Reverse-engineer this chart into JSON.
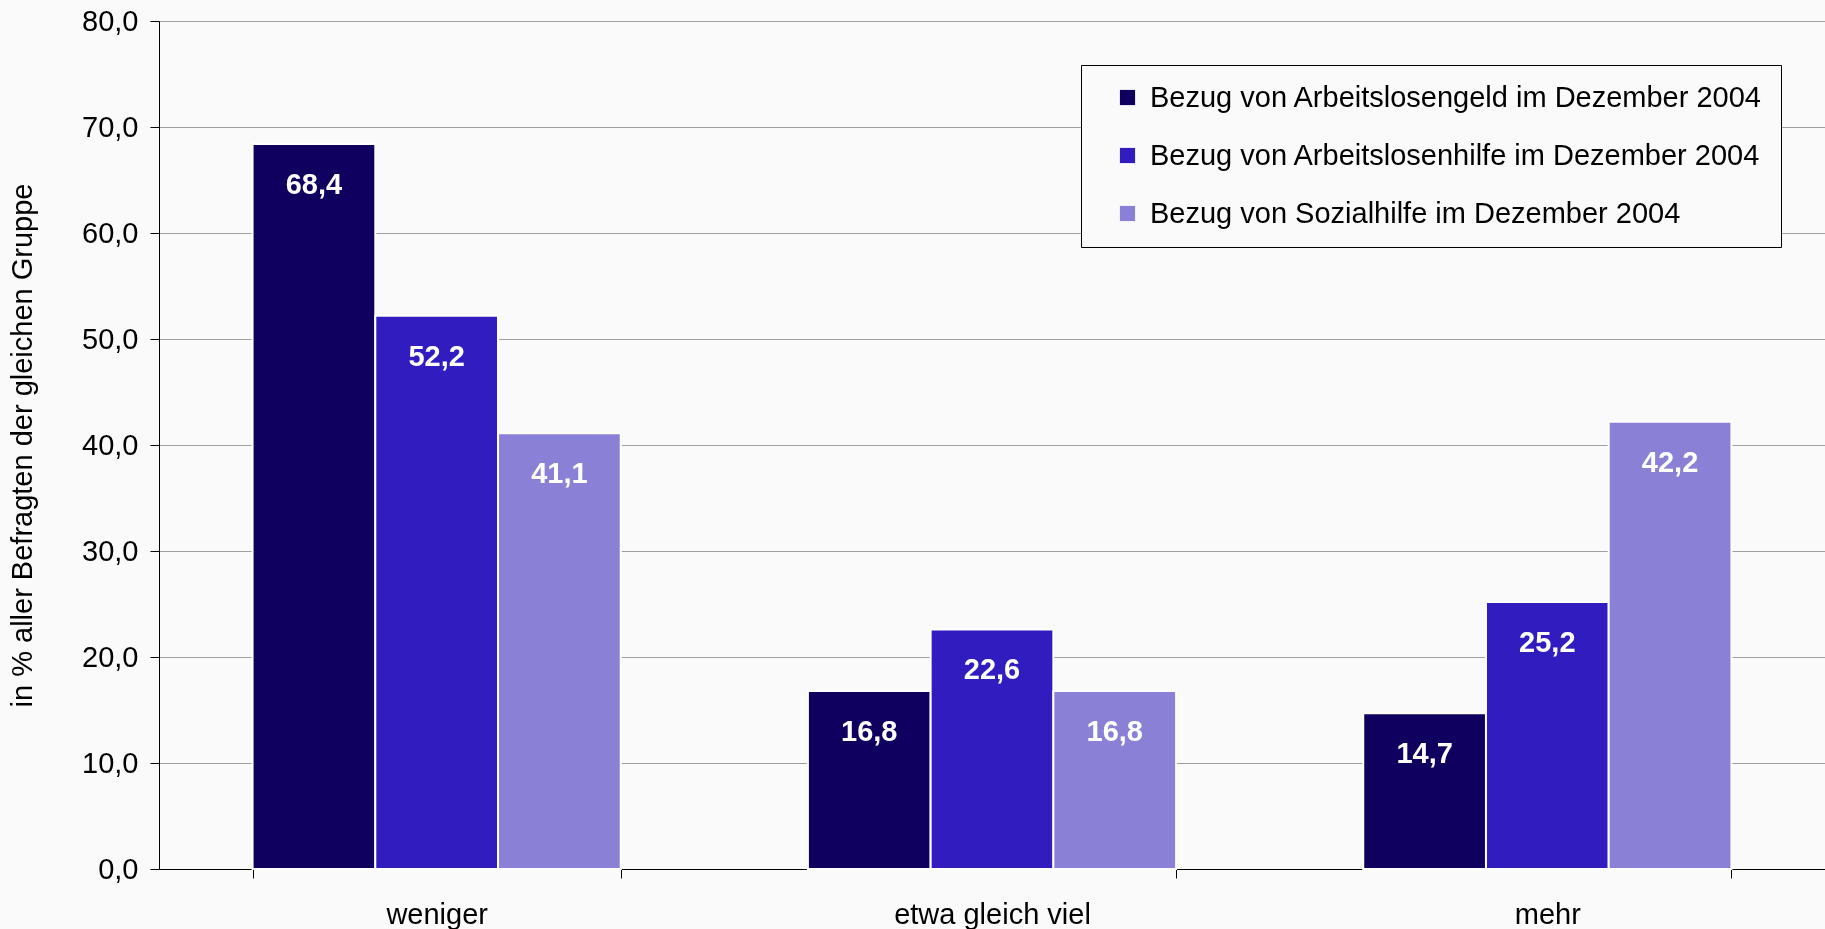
{
  "chart_data": {
    "type": "bar",
    "ylabel": "in % aller Befragten der gleichen Gruppe",
    "categories": [
      "weniger",
      "etwa gleich viel",
      "mehr"
    ],
    "series": [
      {
        "name": "Bezug von Arbeitslosengeld im Dezember 2004",
        "color": "#0f005f",
        "values": [
          68.4,
          16.8,
          14.7
        ],
        "value_labels": [
          "68,4",
          "16,8",
          "14,7"
        ]
      },
      {
        "name": "Bezug von Arbeitslosenhilfe im Dezember 2004",
        "color": "#311cbf",
        "values": [
          52.2,
          22.6,
          25.2
        ],
        "value_labels": [
          "52,2",
          "22,6",
          "25,2"
        ]
      },
      {
        "name": "Bezug von Sozialhilfe im Dezember 2004",
        "color": "#8a80d6",
        "values": [
          41.1,
          16.8,
          42.2
        ],
        "value_labels": [
          "41,1",
          "16,8",
          "42,2"
        ]
      }
    ],
    "ylim": [
      0,
      80
    ],
    "yticks": [
      {
        "value": 0,
        "label": "0,0"
      },
      {
        "value": 10,
        "label": "10,0"
      },
      {
        "value": 20,
        "label": "20,0"
      },
      {
        "value": 30,
        "label": "30,0"
      },
      {
        "value": 40,
        "label": "40,0"
      },
      {
        "value": 50,
        "label": "50,0"
      },
      {
        "value": 60,
        "label": "60,0"
      },
      {
        "value": 70,
        "label": "70,0"
      },
      {
        "value": 80,
        "label": "80,0"
      }
    ],
    "grid": "y",
    "legend": "top right"
  }
}
